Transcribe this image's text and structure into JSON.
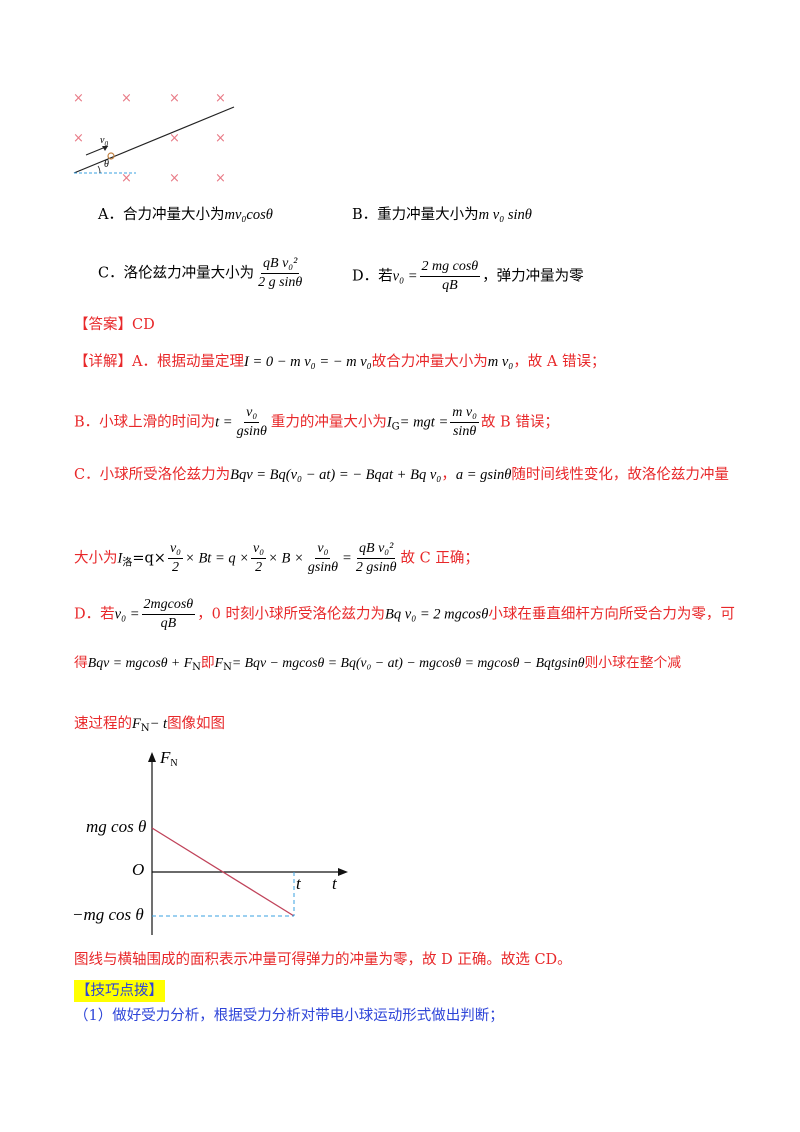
{
  "top_figure": {
    "velocity_label": "v",
    "velocity_sub": "0",
    "angle_label": "θ",
    "field_mark": "×"
  },
  "options": {
    "a_label": "A．合力冲量大小为",
    "a_math": "mv₀cosθ",
    "b_label": "B．重力冲量大小为",
    "b_math": "m v₀ sinθ",
    "c_label": "C．洛伦兹力冲量大小为",
    "c_num": "qB v₀²",
    "c_den": "2 g sinθ",
    "d_label": "D．若",
    "d_math_left": "v₀ =",
    "d_num": "2 mg cosθ",
    "d_den": "qB",
    "d_tail": "，弹力冲量为零"
  },
  "answer": {
    "label": "【答案】CD"
  },
  "detail": {
    "prefix": "【详解】A．根据动量定理",
    "a_math": "I = 0 − m v₀ = − m v₀",
    "a_mid": "故合力冲量大小为",
    "a_math2": "m v₀",
    "a_tail": "，故 A 错误；",
    "b_prefix": "B．小球上滑的时间为",
    "b_t": "t =",
    "b_num": "v₀",
    "b_den": "gsinθ",
    "b_mid": "重力的冲量大小为",
    "b_math": "I",
    "b_sub": "G",
    "b_math2": "= mgt =",
    "b_num2": "m v₀",
    "b_den2": "sinθ",
    "b_tail": "故 B 错误；",
    "c_prefix": "C．小球所受洛伦兹力为",
    "c_math": "Bqv = Bq(v₀ − at) = − Bqat + Bq v₀",
    "c_sep": "，",
    "c_math2": "a = gsinθ",
    "c_tail": "随时间线性变化，故洛伦兹力冲量",
    "c2_prefix": "大小为",
    "c2_I": "I",
    "c2_sub": "洛",
    "c2_eq1": "=q×",
    "c2_num1": "v₀",
    "c2_den1": "2",
    "c2_eq2": "× Bt = q ×",
    "c2_num2": "v₀",
    "c2_den2": "2",
    "c2_eq3": "× B ×",
    "c2_num3": "v₀",
    "c2_den3": "gsinθ",
    "c2_eq4": "=",
    "c2_num4": "qB v₀²",
    "c2_den4": "2 gsinθ",
    "c2_tail": "故 C 正确；",
    "d_prefix": "D．若",
    "d_v": "v₀ =",
    "d_num": "2mgcosθ",
    "d_den": "qB",
    "d_mid": "，0 时刻小球所受洛伦兹力为",
    "d_math": "Bq v₀ = 2 mgcosθ",
    "d_tail": "小球在垂直细杆方向所受合力为零，可",
    "d2_prefix": "得",
    "d2_math": "Bqv = mgcosθ + F",
    "d2_sub": "N",
    "d2_mid": "即",
    "d2_math2": "F",
    "d2_sub2": "N",
    "d2_math3": "= Bqv − mgcosθ = Bq(v₀ − at) − mgcosθ = mgcosθ − Bqtgsinθ",
    "d2_tail": "则小球在整个减",
    "d3_prefix": "速过程的",
    "d3_math": "F",
    "d3_sub": "N",
    "d3_math2": "− t",
    "d3_tail": "图像如图"
  },
  "graph": {
    "y_axis_label": "F",
    "y_axis_sub": "N",
    "x_axis_label": "t",
    "t_mark": "t",
    "origin": "O",
    "top_value": "mg cos θ",
    "bottom_value": "−mg cos θ",
    "line_color": "#c0435a",
    "dash_color": "#3aa0e0"
  },
  "conclusion": "图线与横轴围成的面积表示冲量可得弹力的冲量为零，故 D 正确。故选 CD。",
  "tip": {
    "label": "【技巧点拨】",
    "item1": "（1）做好受力分析，根据受力分析对带电小球运动形式做出判断；"
  },
  "colors": {
    "red_text": "#e8282a",
    "blue_text": "#2e45d8",
    "highlight": "#ffff00"
  }
}
